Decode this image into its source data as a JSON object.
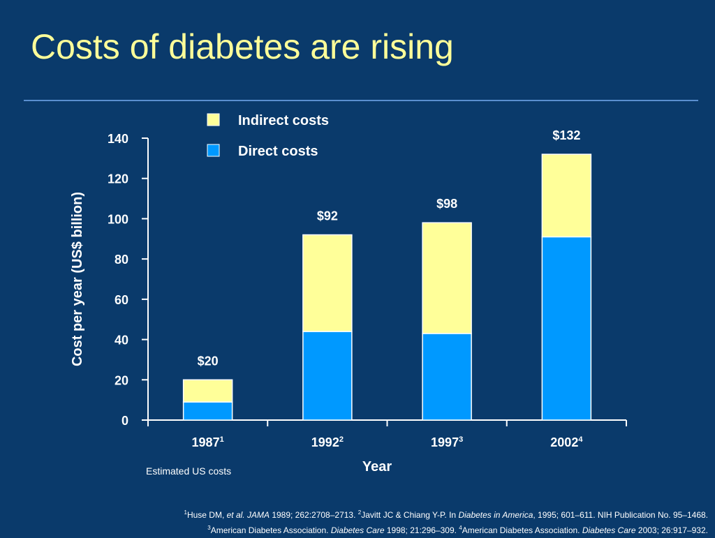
{
  "slide": {
    "title": "Costs of diabetes are rising",
    "note": "Estimated US costs"
  },
  "chart_data": {
    "type": "bar",
    "stacked": true,
    "categories": [
      "1987",
      "1992",
      "1997",
      "2002"
    ],
    "category_superscripts": [
      "1",
      "2",
      "3",
      "4"
    ],
    "series": [
      {
        "name": "Direct costs",
        "values": [
          9,
          44,
          43,
          91
        ],
        "color": "#0099ff"
      },
      {
        "name": "Indirect costs",
        "values": [
          11,
          48,
          55,
          41
        ],
        "color": "#ffff99"
      }
    ],
    "totals": [
      20,
      92,
      98,
      132
    ],
    "total_labels": [
      "$20",
      "$92",
      "$98",
      "$132"
    ],
    "xlabel": "Year",
    "ylabel": "Cost per year (US$ billion)",
    "ylim": [
      0,
      140
    ],
    "yticks": [
      0,
      20,
      40,
      60,
      80,
      100,
      120,
      140
    ],
    "legend_placement": "top-center",
    "grid": false
  },
  "footnotes": {
    "ref1_mark": "1",
    "ref1_authors": "Huse DM, ",
    "ref1_etal": "et al. JAMA",
    "ref1_rest": " 1989; 262:2708–2713. ",
    "ref2_mark": "2",
    "ref2_authors": "Javitt JC & Chiang Y-P. In ",
    "ref2_journal": "Diabetes in America",
    "ref2_rest": ", 1995; 601–611. NIH Publication No. 95–1468.",
    "ref3_mark": "3",
    "ref3_authors": "American Diabetes Association. ",
    "ref3_journal": "Diabetes Care",
    "ref3_rest": " 1998; 21:296–309. ",
    "ref4_mark": "4",
    "ref4_authors": "American Diabetes Association. ",
    "ref4_journal": "Diabetes Care",
    "ref4_rest": " 2003; 26:917–932."
  }
}
